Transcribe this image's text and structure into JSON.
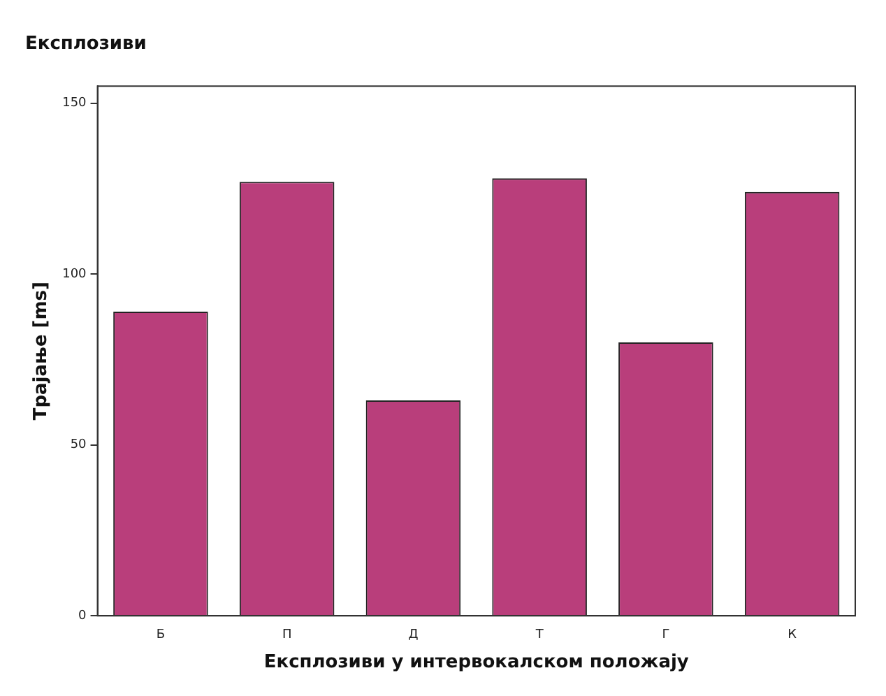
{
  "chart_data": {
    "type": "bar",
    "title": "Експлозиви",
    "xlabel": "Експлозиви у интервокалском положају",
    "ylabel": "Трајање [ms]",
    "categories": [
      "Б",
      "П",
      "Д",
      "Т",
      "Г",
      "К"
    ],
    "values": [
      89,
      127,
      63,
      128,
      80,
      124
    ],
    "color": "#b93e7b",
    "ylim": [
      0,
      155
    ],
    "yticks": [
      0,
      50,
      100,
      150
    ],
    "grid": false,
    "legend": false
  }
}
